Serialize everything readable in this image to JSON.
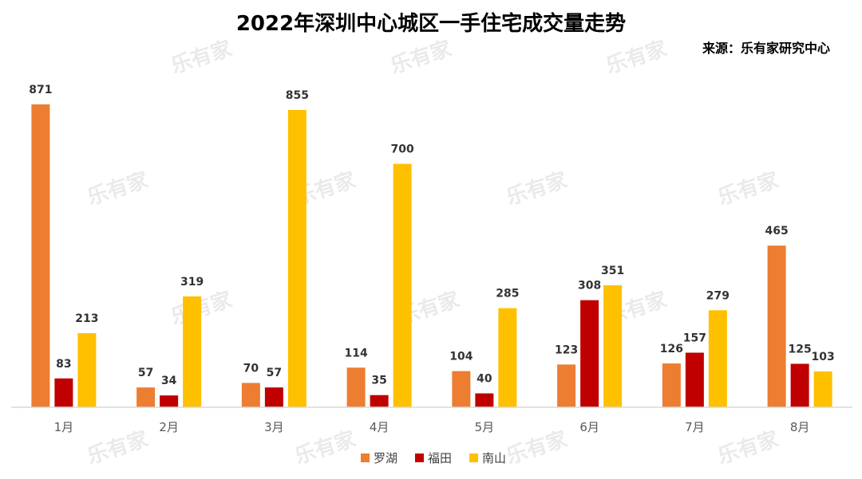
{
  "watermark": "乐有家",
  "colors": {
    "罗湖": "#ed7d31",
    "福田": "#c00000",
    "南山": "#ffc000"
  },
  "chart_data": {
    "type": "bar",
    "title": "2022年深圳中心城区一手住宅成交量走势",
    "subtitle": "来源：乐有家研究中心",
    "xlabel": "",
    "ylabel": "",
    "categories": [
      "1月",
      "2月",
      "3月",
      "4月",
      "5月",
      "6月",
      "7月",
      "8月"
    ],
    "series": [
      {
        "name": "罗湖",
        "values": [
          871,
          57,
          70,
          114,
          104,
          123,
          126,
          465
        ]
      },
      {
        "name": "福田",
        "values": [
          83,
          34,
          57,
          35,
          40,
          308,
          157,
          125
        ]
      },
      {
        "name": "南山",
        "values": [
          213,
          319,
          855,
          700,
          285,
          351,
          279,
          103
        ]
      }
    ],
    "ylim": [
      0,
      871
    ],
    "grid": false,
    "legend": "bottom"
  }
}
